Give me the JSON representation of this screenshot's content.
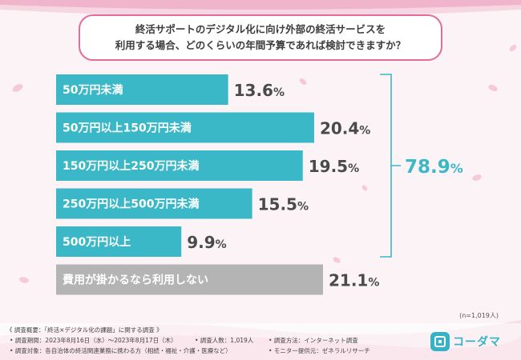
{
  "question": {
    "line1": "終活サポートのデジタル化に向け外部の終活サービスを",
    "line2": "利用する場合、どのくらいの年間予算であれば検討できますか？"
  },
  "chart_data": {
    "type": "bar",
    "orientation": "horizontal",
    "categories": [
      "50万円未満",
      "50万円以上150万円未満",
      "150万円以上250万円未満",
      "250万円以上500万円未満",
      "500万円以上",
      "費用が掛かるなら利用しない"
    ],
    "values": [
      13.6,
      20.4,
      19.5,
      15.5,
      9.9,
      21.1
    ],
    "value_labels": [
      {
        "num": "13.6",
        "unit": "%"
      },
      {
        "num": "20.4",
        "unit": "%"
      },
      {
        "num": "19.5",
        "unit": "%"
      },
      {
        "num": "15.5",
        "unit": "%"
      },
      {
        "num": "9.9",
        "unit": "%"
      },
      {
        "num": "21.1",
        "unit": "%"
      }
    ],
    "bar_colors": [
      "#3ab8c8",
      "#3ab8c8",
      "#3ab8c8",
      "#3ab8c8",
      "#3ab8c8",
      "#b4b4b4"
    ],
    "bracket_total": {
      "num": "78.9",
      "unit": "%",
      "covers_first_n": 5
    },
    "xlim": [
      0,
      21.1
    ]
  },
  "sample_size": "(n=1,019人)",
  "footer": {
    "title": "《 調査概要：「終活×デジタル化の課題」に関する調査 》",
    "period": "• 調査期間：2023年8月16日（水）〜2023年8月17日（木）",
    "respondents": "• 調査人数：1,019人",
    "method": "• 調査方法：インターネット調査",
    "target": "• 調査対象：各自治体の終活関連業務に携わる方（相続・福祉・介護・医療など）",
    "provider": "• モニター提供元：ゼネラルリサーチ"
  },
  "logo": {
    "badge": "コ",
    "text": "コーダマ"
  },
  "colors": {
    "accent": "#3ab8c8",
    "gray": "#b4b4b4",
    "pink": "#e46a9a"
  }
}
